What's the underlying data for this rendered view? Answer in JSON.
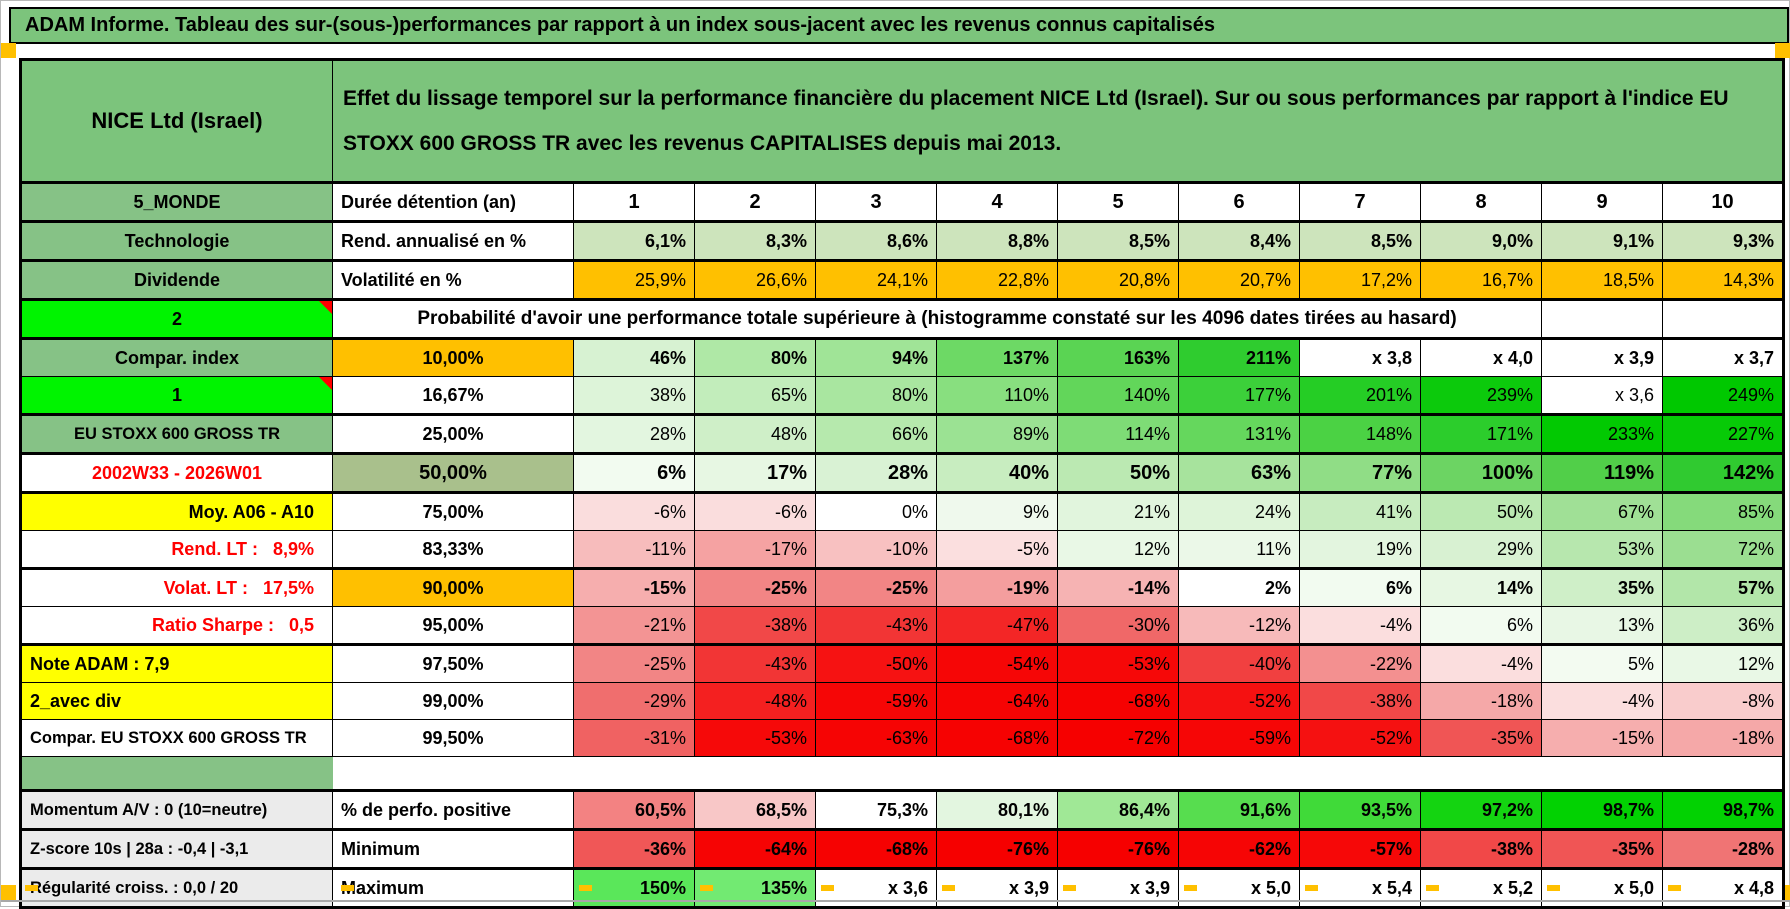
{
  "page": {
    "title": "ADAM Informe. Tableau des sur-(sous-)performances par rapport à un index sous-jacent avec les revenus connus capitalisés"
  },
  "header": {
    "asset": "NICE Ltd (Israel)",
    "description": "Effet du lissage temporel sur la performance financière du placement NICE Ltd (Israel). Sur ou sous performances par rapport à l'indice EU STOXX 600 GROSS TR avec les revenus CAPITALISES depuis mai 2013."
  },
  "colors": {
    "header_green": "#7cc47c",
    "label_green": "#86c286",
    "bright_green": "#00f400",
    "orange": "#ffc000",
    "yellow": "#ffff00",
    "gray_label": "#ebebeb",
    "red_text": "#ff0000",
    "olive_head": "#a9c08c"
  },
  "table": {
    "columns_header": "Durée détention (an)",
    "columns": [
      "1",
      "2",
      "3",
      "4",
      "5",
      "6",
      "7",
      "8",
      "9",
      "10"
    ],
    "probability_note": "Probabilité d'avoir une performance totale supérieure à (histogramme constaté sur les 4096 dates tirées au hasard)",
    "rows": [
      {
        "type": "cols",
        "l": {
          "t": "5_MONDE",
          "cls": "ls-green"
        },
        "h": {
          "t": "Durée détention (an)"
        },
        "tb": true
      },
      {
        "l": {
          "t": "Technologie",
          "cls": "ls-green"
        },
        "h": {
          "t": "Rend. annualisé en %"
        },
        "b": true,
        "cells": [
          {
            "v": "6,1%",
            "c": "#cde4bc"
          },
          {
            "v": "8,3%",
            "c": "#cde4bc"
          },
          {
            "v": "8,6%",
            "c": "#cde4bc"
          },
          {
            "v": "8,8%",
            "c": "#cde4bc"
          },
          {
            "v": "8,5%",
            "c": "#cde4bc"
          },
          {
            "v": "8,4%",
            "c": "#cde4bc"
          },
          {
            "v": "8,5%",
            "c": "#cde4bc"
          },
          {
            "v": "9,0%",
            "c": "#cde4bc"
          },
          {
            "v": "9,1%",
            "c": "#cde4bc"
          },
          {
            "v": "9,3%",
            "c": "#cde4bc"
          }
        ],
        "tb": true
      },
      {
        "l": {
          "t": "Dividende",
          "cls": "ls-green"
        },
        "h": {
          "t": "Volatilité en %"
        },
        "cells": [
          {
            "v": "25,9%",
            "c": "#ffc000"
          },
          {
            "v": "26,6%",
            "c": "#ffc000"
          },
          {
            "v": "24,1%",
            "c": "#ffc000"
          },
          {
            "v": "22,8%",
            "c": "#ffc000"
          },
          {
            "v": "20,8%",
            "c": "#ffc000"
          },
          {
            "v": "20,7%",
            "c": "#ffc000"
          },
          {
            "v": "17,2%",
            "c": "#ffc000"
          },
          {
            "v": "16,7%",
            "c": "#ffc000"
          },
          {
            "v": "18,5%",
            "c": "#ffc000"
          },
          {
            "v": "14,3%",
            "c": "#ffc000"
          }
        ],
        "tb": true
      },
      {
        "type": "note",
        "l": {
          "t": "2",
          "cls": "ls-bright",
          "cm": true
        },
        "tb": true
      },
      {
        "l": {
          "t": "Compar. index",
          "cls": "ls-green"
        },
        "h": {
          "t": "10,00%",
          "bg": "#ffc000",
          "center": true
        },
        "b": true,
        "cells": [
          {
            "v": "46%",
            "c": "#d7f2d2"
          },
          {
            "v": "80%",
            "c": "#afe8a6"
          },
          {
            "v": "94%",
            "c": "#a0e497"
          },
          {
            "v": "137%",
            "c": "#6dd965"
          },
          {
            "v": "163%",
            "c": "#5ad453"
          },
          {
            "v": "211%",
            "c": "#2fcc2f"
          },
          {
            "v": "x 3,8",
            "c": "#ffffff"
          },
          {
            "v": "x 4,0",
            "c": "#ffffff"
          },
          {
            "v": "x 3,9",
            "c": "#ffffff"
          },
          {
            "v": "x 3,7",
            "c": "#ffffff"
          }
        ],
        "tb": true
      },
      {
        "l": {
          "t": "1",
          "cls": "ls-bright",
          "cm": true
        },
        "h": {
          "t": "16,67%",
          "center": true
        },
        "cells": [
          {
            "v": "38%",
            "c": "#ddf4d9"
          },
          {
            "v": "65%",
            "c": "#c2edbb"
          },
          {
            "v": "80%",
            "c": "#a9e6a0"
          },
          {
            "v": "110%",
            "c": "#88df7f"
          },
          {
            "v": "140%",
            "c": "#62d65a"
          },
          {
            "v": "177%",
            "c": "#3cd03a"
          },
          {
            "v": "201%",
            "c": "#25cd25"
          },
          {
            "v": "239%",
            "c": "#0cca0c"
          },
          {
            "v": "x 3,6",
            "c": "#ffffff"
          },
          {
            "v": "249%",
            "c": "#00c800"
          }
        ]
      },
      {
        "l": {
          "t": "EU STOXX 600 GROSS TR",
          "cls": "ls-green sm"
        },
        "h": {
          "t": "25,00%",
          "center": true
        },
        "cells": [
          {
            "v": "28%",
            "c": "#e3f6e0"
          },
          {
            "v": "48%",
            "c": "#cfefc8"
          },
          {
            "v": "66%",
            "c": "#b6e9ad"
          },
          {
            "v": "89%",
            "c": "#9be293"
          },
          {
            "v": "114%",
            "c": "#7edc76"
          },
          {
            "v": "131%",
            "c": "#65d75d"
          },
          {
            "v": "148%",
            "c": "#4bd244"
          },
          {
            "v": "171%",
            "c": "#2ccd2c"
          },
          {
            "v": "233%",
            "c": "#02c902"
          },
          {
            "v": "227%",
            "c": "#07ca07"
          }
        ],
        "tb": true
      },
      {
        "l": {
          "t": "2002W33 - 2026W01",
          "cls": "ls-red al-c"
        },
        "h": {
          "t": "50,00%",
          "bg": "#a9c08c",
          "center": true,
          "big": true
        },
        "b": true,
        "big": true,
        "cells": [
          {
            "v": "6%",
            "c": "#f2fbf0"
          },
          {
            "v": "17%",
            "c": "#e7f7e3"
          },
          {
            "v": "28%",
            "c": "#d9f2d4"
          },
          {
            "v": "40%",
            "c": "#c8edc0"
          },
          {
            "v": "50%",
            "c": "#bbe9b2"
          },
          {
            "v": "63%",
            "c": "#a7e39d"
          },
          {
            "v": "77%",
            "c": "#90dd86"
          },
          {
            "v": "100%",
            "c": "#6cd463"
          },
          {
            "v": "119%",
            "c": "#51cf49"
          },
          {
            "v": "142%",
            "c": "#30ca30"
          }
        ],
        "tb": true
      },
      {
        "l": {
          "t": "Moy. A06 - A10",
          "cls": "ls-yellow al-r"
        },
        "h": {
          "t": "75,00%",
          "center": true
        },
        "cells": [
          {
            "v": "-6%",
            "c": "#fadddd"
          },
          {
            "v": "-6%",
            "c": "#fadddd"
          },
          {
            "v": "0%",
            "c": "#ffffff"
          },
          {
            "v": "9%",
            "c": "#eff9ed"
          },
          {
            "v": "21%",
            "c": "#e1f5dd"
          },
          {
            "v": "24%",
            "c": "#def4d9"
          },
          {
            "v": "41%",
            "c": "#c7ecbf"
          },
          {
            "v": "50%",
            "c": "#bbe9b2"
          },
          {
            "v": "67%",
            "c": "#a0e096"
          },
          {
            "v": "85%",
            "c": "#85da7b"
          }
        ],
        "tb": true
      },
      {
        "l": {
          "t": "Rend. LT :   8,9%",
          "cls": "ls-red al-r"
        },
        "h": {
          "t": "83,33%",
          "center": true
        },
        "cells": [
          {
            "v": "-11%",
            "c": "#f7bcbc"
          },
          {
            "v": "-17%",
            "c": "#f5a2a2"
          },
          {
            "v": "-10%",
            "c": "#f8c1c1"
          },
          {
            "v": "-5%",
            "c": "#fbdfdf"
          },
          {
            "v": "12%",
            "c": "#e9f8e6"
          },
          {
            "v": "11%",
            "c": "#ebf8e8"
          },
          {
            "v": "19%",
            "c": "#e3f5df"
          },
          {
            "v": "29%",
            "c": "#d8f1d2"
          },
          {
            "v": "53%",
            "c": "#b7e7ae"
          },
          {
            "v": "72%",
            "c": "#9bde91"
          }
        ]
      },
      {
        "l": {
          "t": "Volat. LT :   17,5%",
          "cls": "ls-red al-r"
        },
        "h": {
          "t": "90,00%",
          "bg": "#ffc000",
          "center": true
        },
        "b": true,
        "cells": [
          {
            "v": "-15%",
            "c": "#f6aeae"
          },
          {
            "v": "-25%",
            "c": "#f28585"
          },
          {
            "v": "-25%",
            "c": "#f28585"
          },
          {
            "v": "-19%",
            "c": "#f49e9e"
          },
          {
            "v": "-14%",
            "c": "#f6b3b3"
          },
          {
            "v": "2%",
            "c": "#ffffff"
          },
          {
            "v": "6%",
            "c": "#f2fbf0"
          },
          {
            "v": "14%",
            "c": "#e7f7e3"
          },
          {
            "v": "35%",
            "c": "#cfefc8"
          },
          {
            "v": "57%",
            "c": "#b2e6a9"
          }
        ],
        "tb": true
      },
      {
        "l": {
          "t": "Ratio Sharpe :   0,5",
          "cls": "ls-red al-r"
        },
        "h": {
          "t": "95,00%",
          "center": true
        },
        "cells": [
          {
            "v": "-21%",
            "c": "#f39494"
          },
          {
            "v": "-38%",
            "c": "#f14848"
          },
          {
            "v": "-43%",
            "c": "#f23535"
          },
          {
            "v": "-47%",
            "c": "#f32626"
          },
          {
            "v": "-30%",
            "c": "#f06868"
          },
          {
            "v": "-12%",
            "c": "#f7baba"
          },
          {
            "v": "-4%",
            "c": "#fbdede"
          },
          {
            "v": "6%",
            "c": "#f2fbf0"
          },
          {
            "v": "13%",
            "c": "#e8f7e5"
          },
          {
            "v": "36%",
            "c": "#cdeec6"
          }
        ]
      },
      {
        "l": {
          "t": "Note ADAM : 7,9",
          "cls": "ls-yellow al-l"
        },
        "h": {
          "t": "97,50%",
          "center": true
        },
        "cells": [
          {
            "v": "-25%",
            "c": "#f28585"
          },
          {
            "v": "-43%",
            "c": "#f23535"
          },
          {
            "v": "-50%",
            "c": "#f61212"
          },
          {
            "v": "-54%",
            "c": "#f60606"
          },
          {
            "v": "-53%",
            "c": "#f60808"
          },
          {
            "v": "-40%",
            "c": "#f14040"
          },
          {
            "v": "-22%",
            "c": "#f39090"
          },
          {
            "v": "-4%",
            "c": "#fbdede"
          },
          {
            "v": "5%",
            "c": "#f3fbf1"
          },
          {
            "v": "12%",
            "c": "#e9f8e6"
          }
        ],
        "tb": true
      },
      {
        "l": {
          "t": "2_avec div",
          "cls": "ls-yellow al-l"
        },
        "h": {
          "t": "99,00%",
          "center": true
        },
        "cells": [
          {
            "v": "-29%",
            "c": "#f06e6e"
          },
          {
            "v": "-48%",
            "c": "#f42020"
          },
          {
            "v": "-59%",
            "c": "#f60606"
          },
          {
            "v": "-64%",
            "c": "#f60404"
          },
          {
            "v": "-68%",
            "c": "#f60202"
          },
          {
            "v": "-52%",
            "c": "#f51111"
          },
          {
            "v": "-38%",
            "c": "#f14848"
          },
          {
            "v": "-18%",
            "c": "#f5a8a8"
          },
          {
            "v": "-4%",
            "c": "#fbdede"
          },
          {
            "v": "-8%",
            "c": "#f9cccc"
          }
        ]
      },
      {
        "l": {
          "t": "Compar. EU STOXX 600 GROSS TR",
          "cls": "ls-white sm al-l"
        },
        "h": {
          "t": "99,50%",
          "center": true
        },
        "cells": [
          {
            "v": "-31%",
            "c": "#f06262"
          },
          {
            "v": "-53%",
            "c": "#f60909"
          },
          {
            "v": "-63%",
            "c": "#f60404"
          },
          {
            "v": "-68%",
            "c": "#f60202"
          },
          {
            "v": "-72%",
            "c": "#f60000"
          },
          {
            "v": "-59%",
            "c": "#f60606"
          },
          {
            "v": "-52%",
            "c": "#f51111"
          },
          {
            "v": "-35%",
            "c": "#f05555"
          },
          {
            "v": "-15%",
            "c": "#f6aeae"
          },
          {
            "v": "-18%",
            "c": "#f5a8a8"
          }
        ]
      },
      {
        "type": "spacer"
      },
      {
        "l": {
          "t": "Momentum A/V : 0 (10=neutre)",
          "cls": "ls-gray sm al-l"
        },
        "h": {
          "t": "% de perfo. positive"
        },
        "b": true,
        "cells": [
          {
            "v": "60,5%",
            "c": "#f38282"
          },
          {
            "v": "68,5%",
            "c": "#f8c7c7"
          },
          {
            "v": "75,3%",
            "c": "#ffffff"
          },
          {
            "v": "80,1%",
            "c": "#e3f6e0"
          },
          {
            "v": "86,4%",
            "c": "#a0e896"
          },
          {
            "v": "91,6%",
            "c": "#57dd4f"
          },
          {
            "v": "93,5%",
            "c": "#40da39"
          },
          {
            "v": "97,2%",
            "c": "#14d411"
          },
          {
            "v": "98,7%",
            "c": "#02d202"
          },
          {
            "v": "98,7%",
            "c": "#02d202"
          }
        ],
        "tb": true
      },
      {
        "l": {
          "t": "Z-score 10s | 28a : -0,4 | -3,1",
          "cls": "ls-gray sm al-l"
        },
        "h": {
          "t": "Minimum"
        },
        "b": true,
        "cells": [
          {
            "v": "-36%",
            "c": "#f05757"
          },
          {
            "v": "-64%",
            "c": "#f60404"
          },
          {
            "v": "-68%",
            "c": "#f60202"
          },
          {
            "v": "-76%",
            "c": "#f60000"
          },
          {
            "v": "-76%",
            "c": "#f60000"
          },
          {
            "v": "-62%",
            "c": "#f60505"
          },
          {
            "v": "-57%",
            "c": "#f60808"
          },
          {
            "v": "-38%",
            "c": "#f14848"
          },
          {
            "v": "-35%",
            "c": "#f05555"
          },
          {
            "v": "-28%",
            "c": "#f07474"
          }
        ],
        "tb": true
      },
      {
        "l": {
          "t": "Régularité croiss. : 0,0 / 20",
          "cls": "ls-gray sm al-l"
        },
        "h": {
          "t": "Maximum"
        },
        "b": true,
        "cells": [
          {
            "v": "150%",
            "c": "#5ae75a"
          },
          {
            "v": "135%",
            "c": "#72ea72"
          },
          {
            "v": "x 3,6",
            "c": "#ffffff"
          },
          {
            "v": "x 3,9",
            "c": "#ffffff"
          },
          {
            "v": "x 3,9",
            "c": "#ffffff"
          },
          {
            "v": "x 5,0",
            "c": "#ffffff"
          },
          {
            "v": "x 5,4",
            "c": "#ffffff"
          },
          {
            "v": "x 5,2",
            "c": "#ffffff"
          },
          {
            "v": "x 5,0",
            "c": "#ffffff"
          },
          {
            "v": "x 4,8",
            "c": "#ffffff"
          }
        ],
        "tb": true,
        "bb": true
      }
    ]
  }
}
